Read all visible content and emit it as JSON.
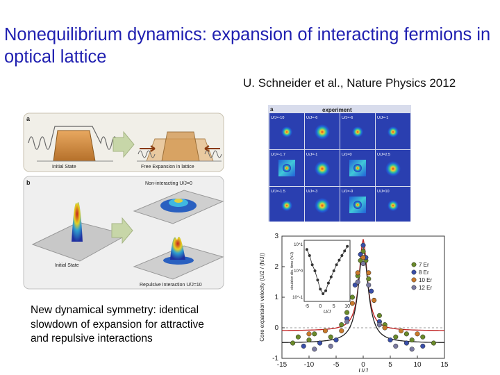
{
  "slide": {
    "title": "Nonequilibrium dynamics: expansion of interacting fermions in optical lattice",
    "citation": "U. Schneider et al., Nature Physics 2012",
    "caption": "New dynamical symmetry: identical slowdown of expansion for attractive and repulsive interactions"
  },
  "figure_left": {
    "panel_a": {
      "letter": "a",
      "label_initial": "Initial State",
      "label_free": "Free Expansion in lattice"
    },
    "panel_b": {
      "letter": "b",
      "label_noninteracting": "Non-interacting U/J=0",
      "label_initial": "Initial State",
      "label_repulsive": "Repulsive Interaction U/J=10"
    }
  },
  "figure_experiment": {
    "letter": "a",
    "header": "experiment",
    "cells": [
      "U/J=-10",
      "U/J=-6",
      "U/J=-6",
      "U/J=-1",
      "U/J=-1.7",
      "U/J=-1",
      "U/J=0",
      "U/J=2.5",
      "U/J=-1.5",
      "U/J=-3",
      "U/J=-9",
      "U/J=10"
    ]
  },
  "chart_data": {
    "type": "scatter",
    "xlabel": "U/J",
    "ylabel": "Core expansion velocity (U/2 / (ħ/J))",
    "xlim": [
      -15,
      15
    ],
    "ylim": [
      -1,
      3
    ],
    "xticks": [
      "-15",
      "-10",
      "-5",
      "0",
      "5",
      "10",
      "15"
    ],
    "yticks": [
      "-1",
      "0",
      "1",
      "2",
      "3"
    ],
    "series": [
      {
        "name": "7 Er",
        "color": "#6a8a2a",
        "x": [
          -13,
          -12,
          -10,
          -9,
          -6,
          -4,
          -3,
          -2,
          -1,
          -0.5,
          0,
          0.5,
          1,
          2,
          3,
          4,
          6,
          8,
          9,
          11,
          13
        ],
        "y": [
          -0.5,
          -0.3,
          -0.4,
          -0.2,
          -0.3,
          0.1,
          0.5,
          1.0,
          1.7,
          2.2,
          2.5,
          2.2,
          1.6,
          0.9,
          0.4,
          0.1,
          -0.3,
          -0.2,
          -0.4,
          -0.3,
          -0.5
        ]
      },
      {
        "name": "8 Er",
        "color": "#3a4fa8",
        "x": [
          -11,
          -8,
          -5,
          -3,
          -1.5,
          -0.5,
          0,
          0.5,
          1.5,
          3,
          5,
          8,
          11
        ],
        "y": [
          -0.6,
          -0.5,
          -0.4,
          0.3,
          1.4,
          2.4,
          2.7,
          2.3,
          1.2,
          0.2,
          -0.4,
          -0.5,
          -0.6
        ]
      },
      {
        "name": "10 Er",
        "color": "#c9792a",
        "x": [
          -10,
          -7,
          -4,
          -2,
          -1,
          0,
          1,
          2,
          4,
          7,
          10
        ],
        "y": [
          -0.2,
          -0.1,
          -0.1,
          0.8,
          1.8,
          2.3,
          1.8,
          0.9,
          0,
          -0.1,
          -0.2
        ]
      },
      {
        "name": "12 Er",
        "color": "#7a7aa0",
        "x": [
          -9,
          -6,
          -3,
          -1,
          0,
          1,
          3,
          6,
          9
        ],
        "y": [
          -0.7,
          -0.6,
          0.2,
          1.5,
          2.1,
          1.4,
          0.1,
          -0.6,
          -0.7
        ]
      }
    ],
    "inset": {
      "ylabel": "doublon dis. time (ħ/J)",
      "xlabel": "U/J",
      "xticks": [
        "-5",
        "0",
        "5",
        "10"
      ],
      "yticks": [
        "10^1",
        "10^0",
        "10^-1"
      ],
      "x": [
        -5,
        -4,
        -3,
        -2,
        -1,
        0,
        1,
        2,
        3,
        4,
        5,
        6,
        7,
        8,
        9,
        10
      ],
      "log10_y": [
        0.7,
        0.5,
        0.2,
        0,
        -0.3,
        -0.6,
        -0.75,
        -0.65,
        -0.4,
        -0.2,
        0,
        0.2,
        0.35,
        0.5,
        0.65,
        0.8
      ]
    }
  }
}
